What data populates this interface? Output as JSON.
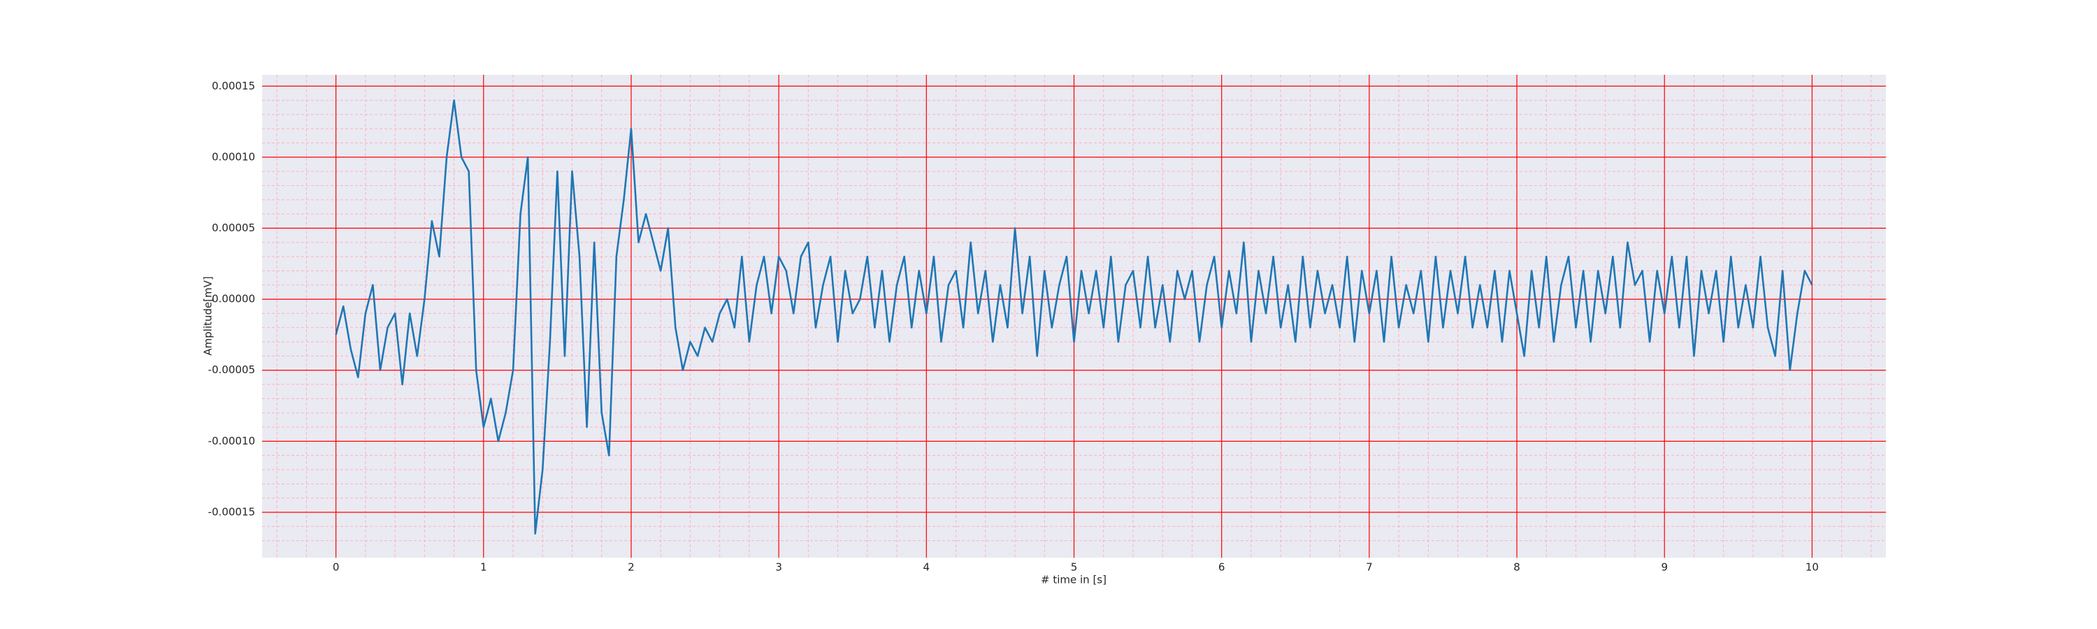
{
  "chart_data": {
    "type": "line",
    "xlabel": "# time in [s]",
    "ylabel": "Amplitude[mV]",
    "color": "#1f77b4",
    "grid": true,
    "grid_color": "#ff0000",
    "minor_grid": true,
    "minor_grid_color": "#ffb0c0",
    "background": "#eaeaf2",
    "xlim": [
      -0.5,
      10.5
    ],
    "xticks": [
      0,
      1,
      2,
      3,
      4,
      5,
      6,
      7,
      8,
      9,
      10
    ],
    "ylim": [
      -0.000182,
      0.000158
    ],
    "yticks": [
      0.00015,
      {
        "value": 0.0001,
        "label": "0.00010"
      },
      5e-05,
      {
        "value": 0,
        "label": "0.00000"
      },
      -5e-05,
      {
        "value": -0.0001,
        "label": "-0.00010"
      },
      -0.00015
    ],
    "x": [
      0,
      0.05,
      0.1,
      0.15,
      0.2,
      0.25,
      0.3,
      0.35,
      0.4,
      0.45,
      0.5,
      0.55,
      0.6,
      0.65,
      0.7,
      0.75,
      0.8,
      0.85,
      0.9,
      0.95,
      1,
      1.05,
      1.1,
      1.15,
      1.2,
      1.25,
      1.3,
      1.35,
      1.4,
      1.45,
      1.5,
      1.55,
      1.6,
      1.65,
      1.7,
      1.75,
      1.8,
      1.85,
      1.9,
      1.95,
      2,
      2.05,
      2.1,
      2.15,
      2.2,
      2.25,
      2.3,
      2.35,
      2.4,
      2.45,
      2.5,
      2.55,
      2.6,
      2.65,
      2.7,
      2.75,
      2.8,
      2.85,
      2.9,
      2.95,
      3,
      3.05,
      3.1,
      3.15,
      3.2,
      3.25,
      3.3,
      3.35,
      3.4,
      3.45,
      3.5,
      3.55,
      3.6,
      3.65,
      3.7,
      3.75,
      3.8,
      3.85,
      3.9,
      3.95,
      4,
      4.05,
      4.1,
      4.15,
      4.2,
      4.25,
      4.3,
      4.35,
      4.4,
      4.45,
      4.5,
      4.55,
      4.6,
      4.65,
      4.7,
      4.75,
      4.8,
      4.85,
      4.9,
      4.95,
      5,
      5.05,
      5.1,
      5.15,
      5.2,
      5.25,
      5.3,
      5.35,
      5.4,
      5.45,
      5.5,
      5.55,
      5.6,
      5.65,
      5.7,
      5.75,
      5.8,
      5.85,
      5.9,
      5.95,
      6,
      6.05,
      6.1,
      6.15,
      6.2,
      6.25,
      6.3,
      6.35,
      6.4,
      6.45,
      6.5,
      6.55,
      6.6,
      6.65,
      6.7,
      6.75,
      6.8,
      6.85,
      6.9,
      6.95,
      7,
      7.05,
      7.1,
      7.15,
      7.2,
      7.25,
      7.3,
      7.35,
      7.4,
      7.45,
      7.5,
      7.55,
      7.6,
      7.65,
      7.7,
      7.75,
      7.8,
      7.85,
      7.9,
      7.95,
      8,
      8.05,
      8.1,
      8.15,
      8.2,
      8.25,
      8.3,
      8.35,
      8.4,
      8.45,
      8.5,
      8.55,
      8.6,
      8.65,
      8.7,
      8.75,
      8.8,
      8.85,
      8.9,
      8.95,
      9,
      9.05,
      9.1,
      9.15,
      9.2,
      9.25,
      9.3,
      9.35,
      9.4,
      9.45,
      9.5,
      9.55,
      9.6,
      9.65,
      9.7,
      9.75,
      9.8,
      9.85,
      9.9,
      9.95,
      10
    ],
    "values": [
      -2.5e-05,
      -5e-06,
      -3.5e-05,
      -5.5e-05,
      -1e-05,
      1e-05,
      -5e-05,
      -2e-05,
      -1e-05,
      -6e-05,
      -1e-05,
      -4e-05,
      0,
      5.5e-05,
      3e-05,
      0.0001,
      0.00014,
      0.0001,
      9e-05,
      -5e-05,
      -9e-05,
      -7e-05,
      -0.0001,
      -8e-05,
      -5e-05,
      6e-05,
      0.0001,
      -0.000165,
      -0.00012,
      -3e-05,
      9e-05,
      -4e-05,
      9e-05,
      3e-05,
      -9e-05,
      4e-05,
      -8e-05,
      -0.00011,
      3e-05,
      7e-05,
      0.00012,
      4e-05,
      6e-05,
      4e-05,
      2e-05,
      5e-05,
      -2e-05,
      -5e-05,
      -3e-05,
      -4e-05,
      -2e-05,
      -3e-05,
      -1e-05,
      0,
      -2e-05,
      3e-05,
      -3e-05,
      1e-05,
      3e-05,
      -1e-05,
      3e-05,
      2e-05,
      -1e-05,
      3e-05,
      4e-05,
      -2e-05,
      1e-05,
      3e-05,
      -3e-05,
      2e-05,
      -1e-05,
      0,
      3e-05,
      -2e-05,
      2e-05,
      -3e-05,
      1e-05,
      3e-05,
      -2e-05,
      2e-05,
      -1e-05,
      3e-05,
      -3e-05,
      1e-05,
      2e-05,
      -2e-05,
      4e-05,
      -1e-05,
      2e-05,
      -3e-05,
      1e-05,
      -2e-05,
      5e-05,
      -1e-05,
      3e-05,
      -4e-05,
      2e-05,
      -2e-05,
      1e-05,
      3e-05,
      -3e-05,
      2e-05,
      -1e-05,
      2e-05,
      -2e-05,
      3e-05,
      -3e-05,
      1e-05,
      2e-05,
      -2e-05,
      3e-05,
      -2e-05,
      1e-05,
      -3e-05,
      2e-05,
      0,
      2e-05,
      -3e-05,
      1e-05,
      3e-05,
      -2e-05,
      2e-05,
      -1e-05,
      4e-05,
      -3e-05,
      2e-05,
      -1e-05,
      3e-05,
      -2e-05,
      1e-05,
      -3e-05,
      3e-05,
      -2e-05,
      2e-05,
      -1e-05,
      1e-05,
      -2e-05,
      3e-05,
      -3e-05,
      2e-05,
      -1e-05,
      2e-05,
      -3e-05,
      3e-05,
      -2e-05,
      1e-05,
      -1e-05,
      2e-05,
      -3e-05,
      3e-05,
      -2e-05,
      2e-05,
      -1e-05,
      3e-05,
      -2e-05,
      1e-05,
      -2e-05,
      2e-05,
      -3e-05,
      2e-05,
      -1e-05,
      -4e-05,
      2e-05,
      -2e-05,
      3e-05,
      -3e-05,
      1e-05,
      3e-05,
      -2e-05,
      2e-05,
      -3e-05,
      2e-05,
      -1e-05,
      3e-05,
      -2e-05,
      4e-05,
      1e-05,
      2e-05,
      -3e-05,
      2e-05,
      -1e-05,
      3e-05,
      -2e-05,
      3e-05,
      -4e-05,
      2e-05,
      -1e-05,
      2e-05,
      -3e-05,
      3e-05,
      -2e-05,
      1e-05,
      -2e-05,
      3e-05,
      -2e-05,
      -4e-05,
      2e-05,
      -5e-05,
      -1e-05,
      2e-05,
      1e-05
    ]
  }
}
